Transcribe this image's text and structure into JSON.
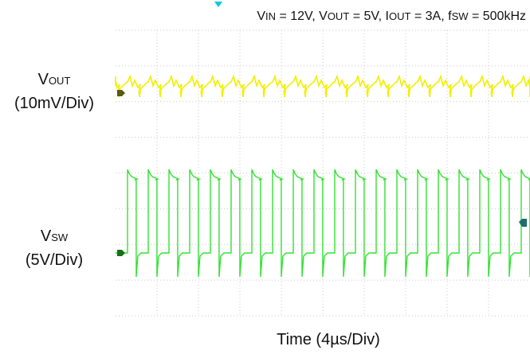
{
  "conditions": {
    "vin": {
      "sym": "V",
      "sub": "IN",
      "rest": " = 12V, "
    },
    "vout": {
      "sym": "V",
      "sub": "OUT",
      "rest": " = 5V, "
    },
    "iout": {
      "sym": "I",
      "sub": "OUT",
      "rest": " = 3A, "
    },
    "fsw": {
      "sym": "f",
      "sub": "SW",
      "rest": " = 500kHz"
    }
  },
  "channels": {
    "vout": {
      "sym": "V",
      "sub": "OUT",
      "scale": "(10mV/Div)",
      "color": "#f0f000"
    },
    "vsw": {
      "sym": "V",
      "sub": "SW",
      "scale": "(5V/Div)",
      "color": "#33e233"
    }
  },
  "xlabel": "Time (4µs/Div)",
  "trigger_color": "#00c8e6",
  "chart_data": {
    "type": "line",
    "time_per_div_us": 4,
    "divisions_x": 10,
    "divisions_y": 8,
    "grid": true,
    "xlabel": "Time (4µs/Div)",
    "series": [
      {
        "name": "V_OUT",
        "scale_per_div": "10mV",
        "shape": "sawtooth ripple",
        "period_us": 2,
        "ripple_pk_pk_mV": 3
      },
      {
        "name": "V_SW",
        "scale_per_div": "5V",
        "shape": "square",
        "period_us": 2,
        "high_V": 12,
        "low_V": 0,
        "duty": 0.42
      }
    ]
  }
}
